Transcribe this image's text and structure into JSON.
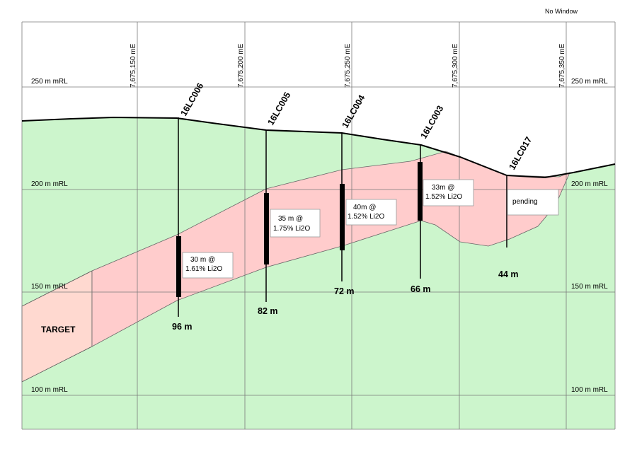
{
  "header": {
    "no_window_label": "No Window"
  },
  "eastings": [
    "7,675,150 mE",
    "7,675,200 mE",
    "7,675,250 mE",
    "7,675,300 mE",
    "7,675,350 mE"
  ],
  "elevations": {
    "e250": "250 m mRL",
    "e200": "200 m mRL",
    "e150": "150 m mRL",
    "e100": "100 m mRL"
  },
  "target_label": "TARGET",
  "colors": {
    "host": "#ccf5cc",
    "ore": "#ffcccc",
    "target": "#ffd9d0",
    "grid": "#7a7a7a"
  },
  "holes": [
    {
      "id": "16LC006",
      "depth": "96 m",
      "intercept_line1": "30 m @",
      "intercept_line2": "1.61% Li2O"
    },
    {
      "id": "16LC005",
      "depth": "82 m",
      "intercept_line1": "35 m @",
      "intercept_line2": "1.75% Li2O"
    },
    {
      "id": "16LC004",
      "depth": "72 m",
      "intercept_line1": "40m @",
      "intercept_line2": "1.52% Li2O"
    },
    {
      "id": "16LC003",
      "depth": "66 m",
      "intercept_line1": "33m @",
      "intercept_line2": "1.52% Li2O"
    },
    {
      "id": "16LC017",
      "depth": "44 m",
      "intercept_line1": "pending"
    }
  ]
}
